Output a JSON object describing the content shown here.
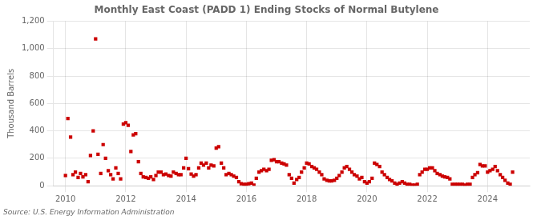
{
  "chart_data": {
    "type": "scatter",
    "title": "Monthly East Coast (PADD 1) Ending Stocks of Normal Butylene",
    "ylabel": "Thousand Barrels",
    "annotations": [
      "Source: U.S. Energy Information Administration"
    ],
    "color": "#cc0000",
    "marker": "square",
    "grid": true,
    "xlim": [
      2009.6,
      2025.4
    ],
    "xticks": [
      2010,
      2012,
      2014,
      2016,
      2018,
      2020,
      2022,
      2024
    ],
    "ylim": [
      0,
      1200
    ],
    "yticks": [
      0,
      200,
      400,
      600,
      800,
      {
        "value": 1000,
        "label": "1,000"
      },
      {
        "value": 1200,
        "label": "1,200"
      }
    ],
    "x": [
      2010.0,
      2010.08,
      2010.17,
      2010.25,
      2010.33,
      2010.42,
      2010.5,
      2010.58,
      2010.67,
      2010.75,
      2010.83,
      2010.92,
      2011.0,
      2011.08,
      2011.17,
      2011.25,
      2011.33,
      2011.42,
      2011.5,
      2011.58,
      2011.67,
      2011.75,
      2011.83,
      2011.92,
      2012.0,
      2012.08,
      2012.17,
      2012.25,
      2012.33,
      2012.42,
      2012.5,
      2012.58,
      2012.67,
      2012.75,
      2012.83,
      2012.92,
      2013.0,
      2013.08,
      2013.17,
      2013.25,
      2013.33,
      2013.42,
      2013.5,
      2013.58,
      2013.67,
      2013.75,
      2013.83,
      2013.92,
      2014.0,
      2014.08,
      2014.17,
      2014.25,
      2014.33,
      2014.42,
      2014.5,
      2014.58,
      2014.67,
      2014.75,
      2014.83,
      2014.92,
      2015.0,
      2015.08,
      2015.17,
      2015.25,
      2015.33,
      2015.42,
      2015.5,
      2015.58,
      2015.67,
      2015.75,
      2015.83,
      2015.92,
      2016.0,
      2016.08,
      2016.17,
      2016.25,
      2016.33,
      2016.42,
      2016.5,
      2016.58,
      2016.67,
      2016.75,
      2016.83,
      2016.92,
      2017.0,
      2017.08,
      2017.17,
      2017.25,
      2017.33,
      2017.42,
      2017.5,
      2017.58,
      2017.67,
      2017.75,
      2017.83,
      2017.92,
      2018.0,
      2018.08,
      2018.17,
      2018.25,
      2018.33,
      2018.42,
      2018.5,
      2018.58,
      2018.67,
      2018.75,
      2018.83,
      2018.92,
      2019.0,
      2019.08,
      2019.17,
      2019.25,
      2019.33,
      2019.42,
      2019.5,
      2019.58,
      2019.67,
      2019.75,
      2019.83,
      2019.92,
      2020.0,
      2020.08,
      2020.17,
      2020.25,
      2020.33,
      2020.42,
      2020.5,
      2020.58,
      2020.67,
      2020.75,
      2020.83,
      2020.92,
      2021.0,
      2021.08,
      2021.17,
      2021.25,
      2021.33,
      2021.42,
      2021.5,
      2021.58,
      2021.67,
      2021.75,
      2021.83,
      2021.92,
      2022.0,
      2022.08,
      2022.17,
      2022.25,
      2022.33,
      2022.42,
      2022.5,
      2022.58,
      2022.67,
      2022.75,
      2022.83,
      2022.92,
      2023.0,
      2023.08,
      2023.17,
      2023.25,
      2023.33,
      2023.42,
      2023.5,
      2023.58,
      2023.67,
      2023.75,
      2023.83,
      2023.92,
      2024.0,
      2024.08,
      2024.17,
      2024.25,
      2024.33,
      2024.42,
      2024.5,
      2024.58,
      2024.67,
      2024.75,
      2024.83
    ],
    "values": [
      75,
      490,
      355,
      80,
      100,
      60,
      90,
      65,
      80,
      30,
      220,
      400,
      1070,
      230,
      90,
      300,
      200,
      110,
      80,
      50,
      130,
      90,
      50,
      450,
      460,
      440,
      250,
      370,
      380,
      175,
      90,
      65,
      60,
      55,
      65,
      45,
      75,
      100,
      100,
      80,
      85,
      75,
      70,
      100,
      90,
      80,
      80,
      130,
      200,
      125,
      85,
      70,
      80,
      130,
      165,
      150,
      165,
      130,
      150,
      145,
      275,
      285,
      165,
      130,
      80,
      90,
      80,
      70,
      60,
      30,
      15,
      10,
      10,
      15,
      20,
      5,
      55,
      100,
      110,
      120,
      110,
      120,
      185,
      190,
      175,
      175,
      165,
      160,
      150,
      80,
      55,
      20,
      45,
      60,
      100,
      130,
      165,
      160,
      140,
      130,
      120,
      100,
      80,
      50,
      40,
      35,
      35,
      40,
      55,
      75,
      100,
      130,
      140,
      120,
      100,
      80,
      70,
      50,
      60,
      30,
      20,
      30,
      55,
      165,
      155,
      140,
      100,
      80,
      60,
      45,
      35,
      20,
      10,
      20,
      30,
      20,
      10,
      10,
      5,
      5,
      10,
      80,
      100,
      120,
      120,
      130,
      130,
      110,
      90,
      80,
      70,
      65,
      60,
      50,
      10,
      10,
      10,
      10,
      10,
      5,
      10,
      10,
      60,
      80,
      95,
      155,
      145,
      145,
      100,
      110,
      120,
      140,
      110,
      80,
      60,
      40,
      20,
      10,
      100
    ]
  }
}
